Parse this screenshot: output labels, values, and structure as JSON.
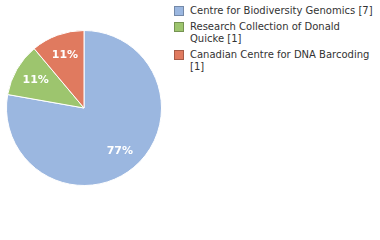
{
  "chart_data": {
    "type": "pie",
    "categories": [
      "Centre for Biodiversity Genomics [7]",
      "Research Collection of Donald Quicke [1]",
      "Canadian Centre for DNA Barcoding [1]"
    ],
    "values": [
      77,
      11,
      11
    ],
    "value_labels": [
      "77%",
      "11%",
      "11%"
    ],
    "colors": [
      "#9bb7e0",
      "#9dc56e",
      "#e07a5f"
    ],
    "data_labels": true,
    "legend": "top-right"
  }
}
